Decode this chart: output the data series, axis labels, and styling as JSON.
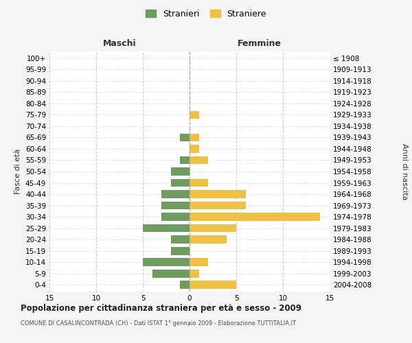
{
  "age_groups": [
    "0-4",
    "5-9",
    "10-14",
    "15-19",
    "20-24",
    "25-29",
    "30-34",
    "35-39",
    "40-44",
    "45-49",
    "50-54",
    "55-59",
    "60-64",
    "65-69",
    "70-74",
    "75-79",
    "80-84",
    "85-89",
    "90-94",
    "95-99",
    "100+"
  ],
  "birth_years": [
    "2004-2008",
    "1999-2003",
    "1994-1998",
    "1989-1993",
    "1984-1988",
    "1979-1983",
    "1974-1978",
    "1969-1973",
    "1964-1968",
    "1959-1963",
    "1954-1958",
    "1949-1953",
    "1944-1948",
    "1939-1943",
    "1934-1938",
    "1929-1933",
    "1924-1928",
    "1919-1923",
    "1914-1918",
    "1909-1913",
    "≤ 1908"
  ],
  "maschi": [
    1,
    4,
    5,
    2,
    2,
    5,
    3,
    3,
    3,
    2,
    2,
    1,
    0,
    1,
    0,
    0,
    0,
    0,
    0,
    0,
    0
  ],
  "femmine": [
    5,
    1,
    2,
    0,
    4,
    5,
    14,
    6,
    6,
    2,
    0,
    2,
    1,
    1,
    0,
    1,
    0,
    0,
    0,
    0,
    0
  ],
  "maschi_color": "#6e9b5e",
  "femmine_color": "#f0c040",
  "background_color": "#f5f5f5",
  "plot_bg_color": "#ffffff",
  "grid_color": "#cccccc",
  "title": "Popolazione per cittadinanza straniera per età e sesso - 2009",
  "subtitle": "COMUNE DI CASALINCONTRADA (CH) - Dati ISTAT 1° gennaio 2009 - Elaborazione TUTTITALIA.IT",
  "ylabel_left": "Fasce di età",
  "ylabel_right": "Anni di nascita",
  "label_maschi": "Maschi",
  "label_femmine": "Femmine",
  "legend_maschi": "Stranieri",
  "legend_femmine": "Straniere",
  "xlim": 15
}
